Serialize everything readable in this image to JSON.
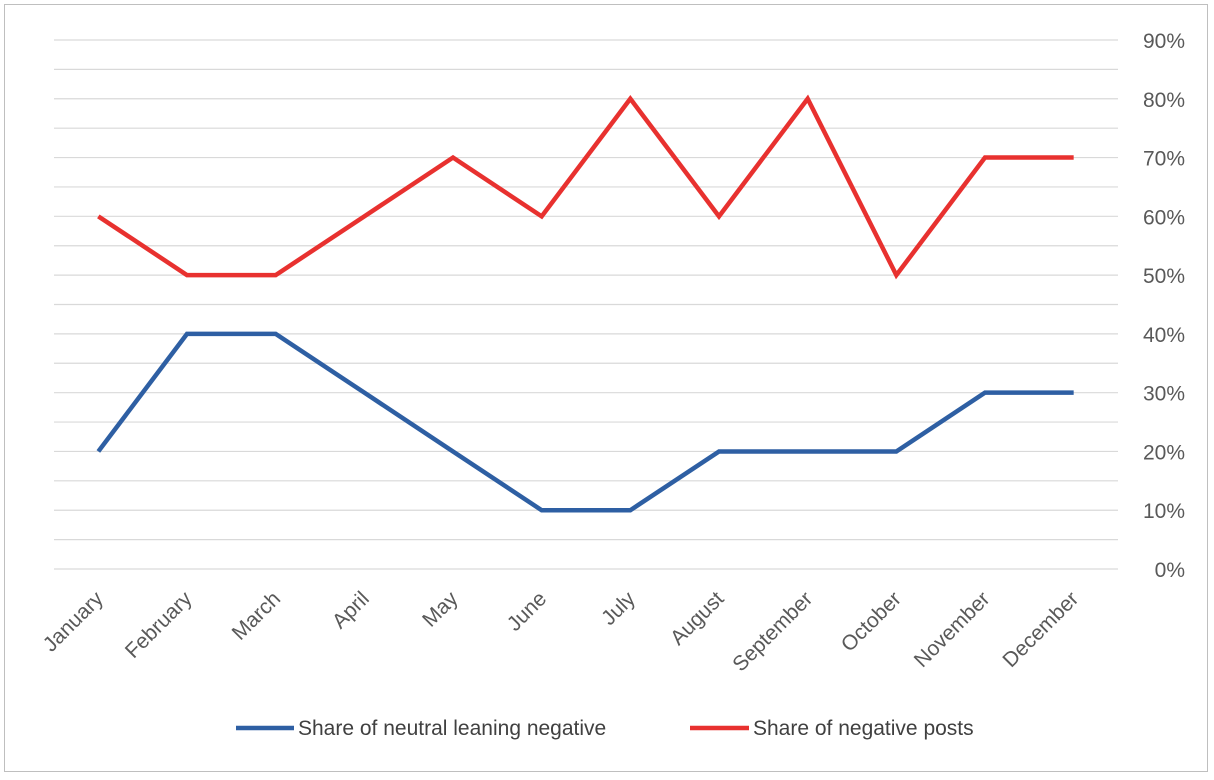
{
  "chart_data": {
    "type": "line",
    "categories": [
      "January",
      "February",
      "March",
      "April",
      "May",
      "June",
      "July",
      "August",
      "September",
      "October",
      "November",
      "December"
    ],
    "series": [
      {
        "name": "Share of neutral leaning negative",
        "color": "#2e5fa3",
        "values": [
          20,
          40,
          40,
          30,
          20,
          10,
          10,
          20,
          20,
          20,
          30,
          30
        ]
      },
      {
        "name": "Share of negative posts",
        "color": "#e8312f",
        "values": [
          60,
          50,
          50,
          60,
          70,
          60,
          80,
          60,
          80,
          50,
          70,
          70
        ]
      }
    ],
    "y_axis": {
      "position": "right",
      "ylim": [
        0,
        90
      ],
      "tick_step": 10,
      "tick_labels": [
        "0%",
        "10%",
        "20%",
        "30%",
        "40%",
        "50%",
        "60%",
        "70%",
        "80%",
        "90%"
      ],
      "minor_gridlines": true
    },
    "x_label_rotation": -45,
    "legend_position": "bottom",
    "gridline_color": "#d9d9d9"
  }
}
